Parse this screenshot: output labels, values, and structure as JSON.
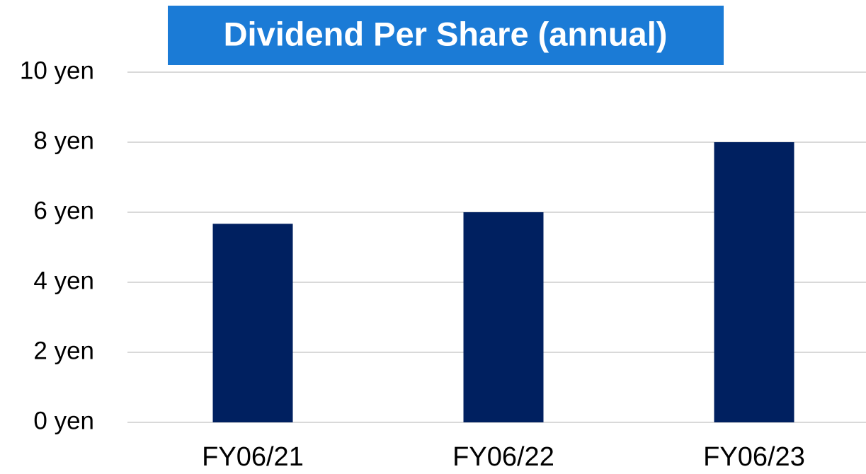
{
  "chart_data": {
    "type": "bar",
    "title": "Dividend Per Share (annual)",
    "categories": [
      "FY06/21",
      "FY06/22",
      "FY06/23"
    ],
    "values": [
      5.67,
      6,
      8
    ],
    "color": "#002060",
    "ylim": [
      0,
      10
    ],
    "yticks": [
      {
        "value": 0,
        "label": "0 yen"
      },
      {
        "value": 2,
        "label": "2 yen"
      },
      {
        "value": 4,
        "label": "4 yen"
      },
      {
        "value": 6,
        "label": "6 yen"
      },
      {
        "value": 8,
        "label": "8 yen"
      },
      {
        "value": 10,
        "label": "10 yen"
      }
    ],
    "grid": true
  }
}
